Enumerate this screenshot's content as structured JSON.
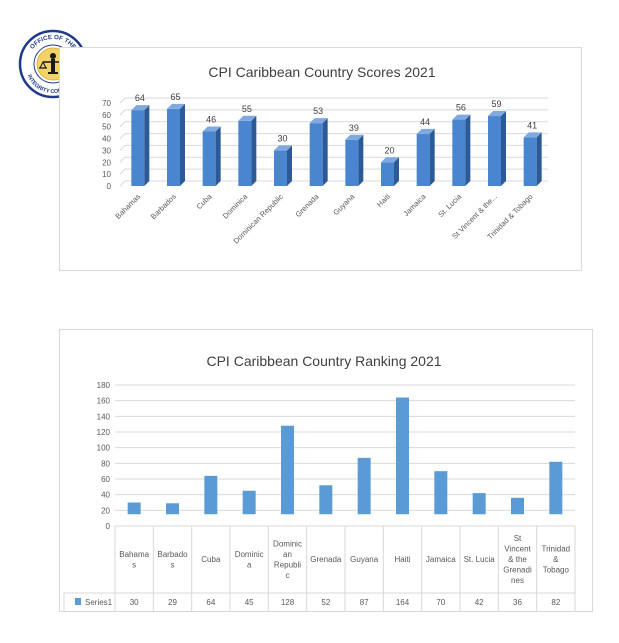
{
  "logo": {
    "text_top": "OFFICE OF THE",
    "text_bottom": "INTEGRITY COMMISSION"
  },
  "colors": {
    "bar_front": "#4a86d0",
    "bar_side": "#2c5a96",
    "bar_top": "#7fa9df",
    "bar_flat": "#5b9bd5",
    "grid": "#d9d9d9",
    "text": "#595959"
  },
  "chart_data": [
    {
      "type": "bar",
      "title": "CPI Caribbean Country Scores 2021",
      "categories": [
        "Bahamas",
        "Barbados",
        "Cuba",
        "Dominica",
        "Dominican Republic",
        "Grenada",
        "Guyana",
        "Haiti",
        "Jamaica",
        "St. Lucia",
        "St Vincent & the...",
        "Trinidad & Tobago"
      ],
      "values": [
        64,
        65,
        46,
        55,
        30,
        53,
        39,
        20,
        44,
        56,
        59,
        41
      ],
      "ylim": [
        0,
        70
      ],
      "yticks": [
        0,
        10,
        20,
        30,
        40,
        50,
        60,
        70
      ],
      "grid": true,
      "style": "3d"
    },
    {
      "type": "bar",
      "title": "CPI Caribbean Country Ranking 2021",
      "categories": [
        "Bahamas",
        "Barbados",
        "Cuba",
        "Dominica",
        "Dominican Republic",
        "Grenada",
        "Guyana",
        "Haiti",
        "Jamaica",
        "St. Lucia",
        "St Vincent & the Grenadines",
        "Trinidad & Tobago"
      ],
      "category_lines": [
        [
          "Bahama",
          "s"
        ],
        [
          "Barbado",
          "s"
        ],
        [
          "Cuba"
        ],
        [
          "Dominic",
          "a"
        ],
        [
          "Dominic",
          "an",
          "Republi",
          "c"
        ],
        [
          "Grenada"
        ],
        [
          "Guyana"
        ],
        [
          "Haiti"
        ],
        [
          "Jamaica"
        ],
        [
          "St. Lucia"
        ],
        [
          "St",
          "Vincent",
          "& the",
          "Grenadi",
          "nes"
        ],
        [
          "Trinidad",
          "&",
          "Tobago"
        ]
      ],
      "series": [
        {
          "name": "Series1",
          "values": [
            30,
            29,
            64,
            45,
            128,
            52,
            87,
            164,
            70,
            42,
            36,
            82
          ]
        }
      ],
      "ylim": [
        0,
        180
      ],
      "yticks": [
        0,
        20,
        40,
        60,
        80,
        100,
        120,
        140,
        160,
        180
      ],
      "grid": true,
      "legend": "data-table"
    }
  ]
}
